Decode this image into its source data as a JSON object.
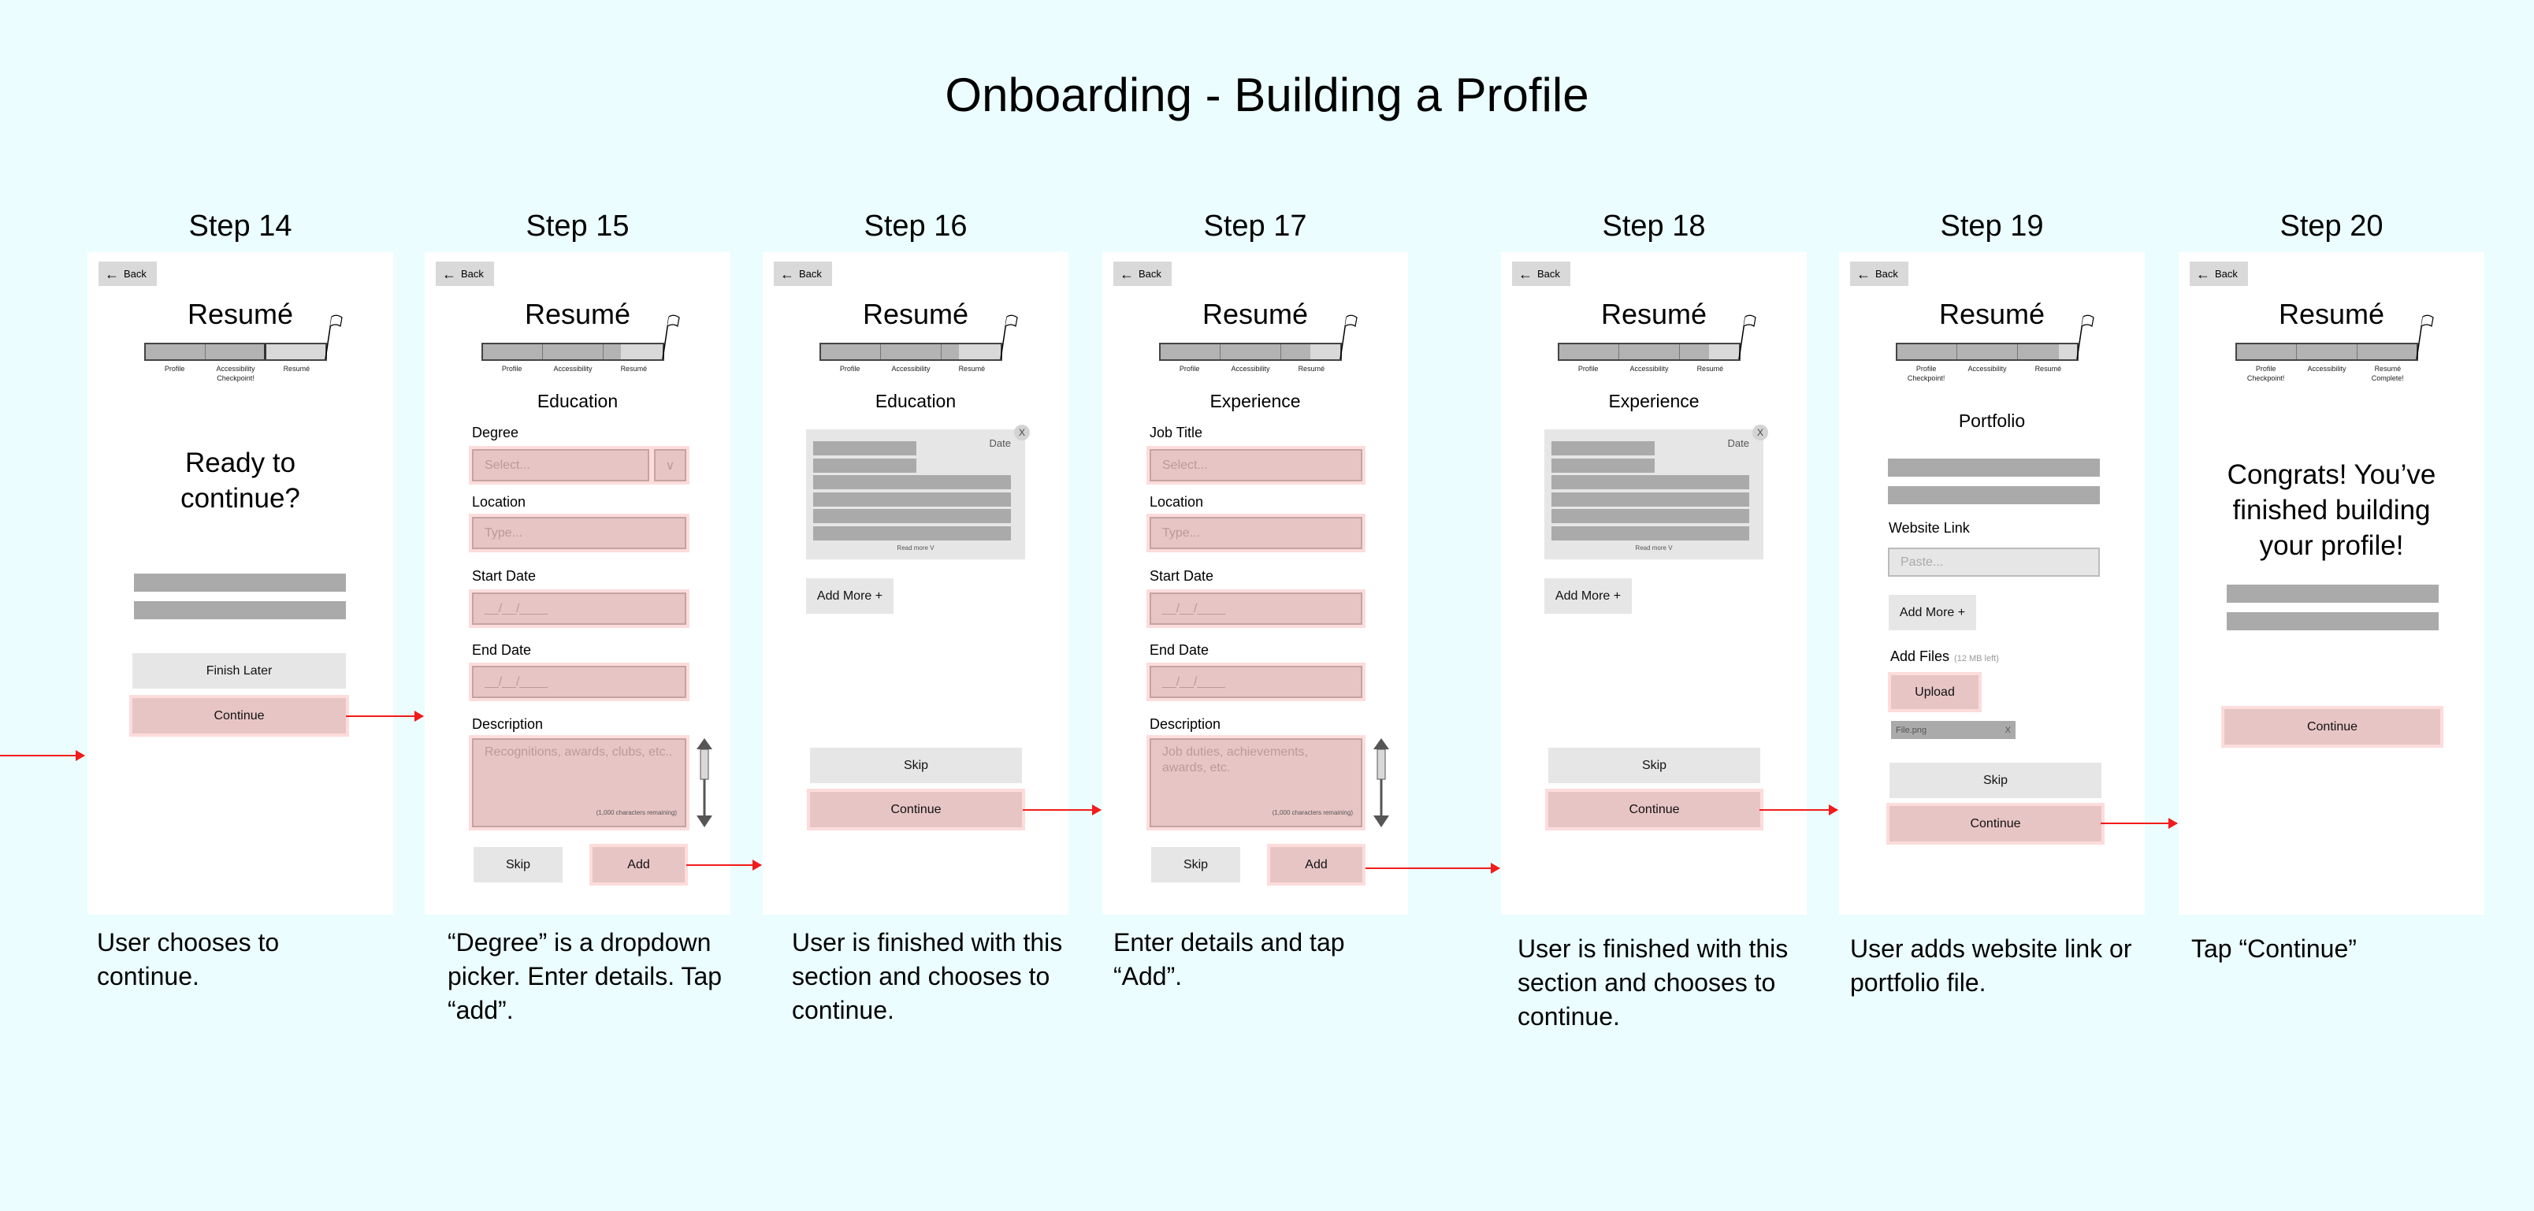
{
  "title": "Onboarding - Building a Profile",
  "common": {
    "back": "Back",
    "resume_title": "Resumé",
    "accent_pink": "#e8c5c5",
    "arrow_color": "#f21b1b"
  },
  "steps": [
    {
      "label": "Step 14",
      "progress": 0,
      "progress_labels": [
        "Profile",
        "Accessibility\nCheckpoint!",
        "Resumé"
      ],
      "prompt": "Ready to continue?",
      "finish_later": "Finish Later",
      "continue": "Continue",
      "caption": "User chooses to continue."
    },
    {
      "label": "Step 15",
      "progress": 0.3,
      "progress_labels": [
        "Profile",
        "Accessibility",
        "Resumé"
      ],
      "heading": "Education",
      "field1_label": "Degree",
      "field1_placeholder": "Select...",
      "location_label": "Location",
      "location_placeholder": "Type...",
      "start_label": "Start Date",
      "start_value": "__/__/____",
      "end_label": "End Date",
      "end_value": "__/__/____",
      "description_label": "Description",
      "description_placeholder": "Recognitions, awards, clubs, etc..",
      "remaining": "(1,000 characters remaining)",
      "skip": "Skip",
      "add": "Add",
      "caption": "“Degree” is a dropdown picker. Enter details. Tap “add”."
    },
    {
      "label": "Step 16",
      "progress": 0.3,
      "progress_labels": [
        "Profile",
        "Accessibility",
        "Resumé"
      ],
      "heading": "Education",
      "card_date": "Date",
      "card_close": "X",
      "read_more": "Read more V",
      "add_more": "Add More +",
      "skip": "Skip",
      "continue": "Continue",
      "caption": "User is finished with this section and chooses to continue."
    },
    {
      "label": "Step 17",
      "progress": 0.5,
      "progress_labels": [
        "Profile",
        "Accessibility",
        "Resumé"
      ],
      "heading": "Experience",
      "field1_label": "Job Title",
      "field1_placeholder": "Select...",
      "location_label": "Location",
      "location_placeholder": "Type...",
      "start_label": "Start Date",
      "start_value": "__/__/____",
      "end_label": "End Date",
      "end_value": "__/__/____",
      "description_label": "Description",
      "description_placeholder": "Job duties, achievements, awards, etc.",
      "remaining": "(1,000 characters remaining)",
      "skip": "Skip",
      "add": "Add",
      "caption": "Enter details and tap “Add”."
    },
    {
      "label": "Step 18",
      "progress": 0.5,
      "progress_labels": [
        "Profile",
        "Accessibility",
        "Resumé"
      ],
      "heading": "Experience",
      "card_date": "Date",
      "card_close": "X",
      "read_more": "Read more V",
      "add_more": "Add More +",
      "skip": "Skip",
      "continue": "Continue",
      "caption": "User is finished with this section and chooses to continue."
    },
    {
      "label": "Step 19",
      "progress": 0.7,
      "progress_labels": [
        "Profile\nCheckpoint!",
        "Accessibility",
        "Resumé"
      ],
      "heading": "Portfolio",
      "website_label": "Website Link",
      "website_placeholder": "Paste...",
      "add_more": "Add More +",
      "files_label": "Add Files",
      "files_note": "(12 MB left)",
      "upload": "Upload",
      "file_name": "File.png",
      "file_remove": "X",
      "skip": "Skip",
      "continue": "Continue",
      "caption": "User adds website link or portfolio file."
    },
    {
      "label": "Step 20",
      "progress": 1,
      "progress_labels": [
        "Profile\nCheckpoint!",
        "Accessibility",
        "Resumé\nComplete!"
      ],
      "prompt": "Congrats! You’ve finished building your profile!",
      "continue": "Continue",
      "caption": "Tap “Continue”"
    }
  ]
}
